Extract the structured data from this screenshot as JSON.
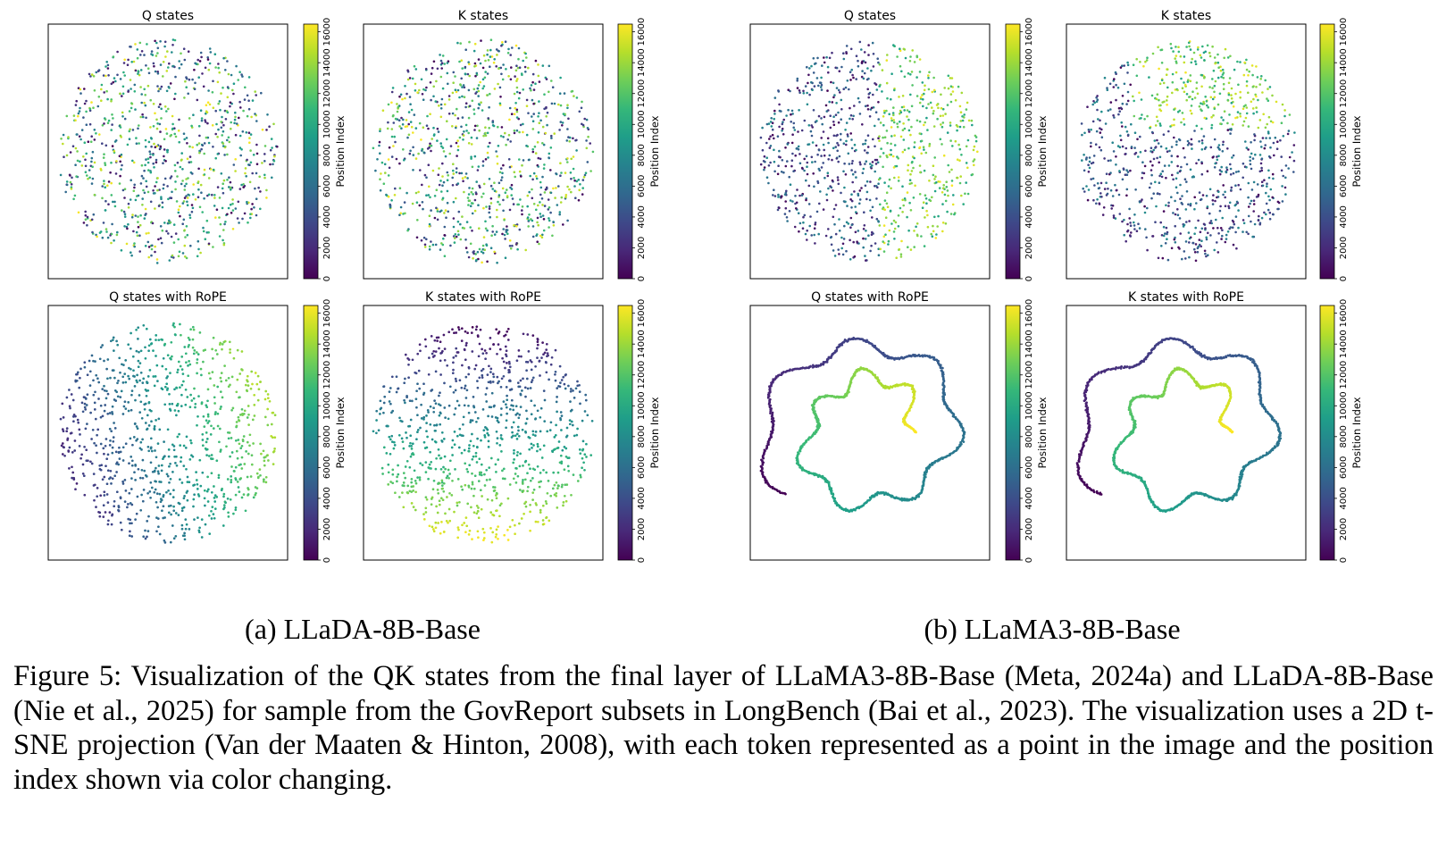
{
  "figure": {
    "subcaption_a": "(a) LLaDA-8B-Base",
    "subcaption_b": "(b) LLaMA3-8B-Base",
    "caption": "Figure 5: Visualization of the QK states from the final layer of LLaMA3-8B-Base (Meta, 2024a) and LLaDA-8B-Base (Nie et al., 2025) for sample from the GovReport subsets in LongBench (Bai et al., 2023). The visualization uses a 2D t-SNE projection (Van der Maaten & Hinton, 2008), with each token represented as a point in the image and the position index shown via color changing."
  },
  "colors": {
    "viridis": [
      "#440154",
      "#482878",
      "#3e4989",
      "#31688e",
      "#26828e",
      "#1f9e89",
      "#35b779",
      "#6ece58",
      "#b5de2b",
      "#fde725"
    ],
    "axes_border": "#000000"
  },
  "chart_data": [
    {
      "type": "scatter",
      "model": "LLaDA-8B-Base",
      "title": "Q states",
      "colorbar_label": "Position Index",
      "colorbar_ticks": [
        0,
        2000,
        4000,
        6000,
        8000,
        10000,
        12000,
        14000,
        16000
      ],
      "color_range": [
        0,
        16500
      ],
      "pattern": "mixed"
    },
    {
      "type": "scatter",
      "model": "LLaDA-8B-Base",
      "title": "K states",
      "colorbar_label": "Position Index",
      "colorbar_ticks": [
        0,
        2000,
        4000,
        6000,
        8000,
        10000,
        12000,
        14000,
        16000
      ],
      "color_range": [
        0,
        16500
      ],
      "pattern": "mixed"
    },
    {
      "type": "scatter",
      "model": "LLaMA3-8B-Base",
      "title": "Q states",
      "colorbar_label": "Position Index",
      "colorbar_ticks": [
        0,
        2000,
        4000,
        6000,
        8000,
        10000,
        12000,
        14000,
        16000
      ],
      "color_range": [
        0,
        16500
      ],
      "pattern": "split"
    },
    {
      "type": "scatter",
      "model": "LLaMA3-8B-Base",
      "title": "K states",
      "colorbar_label": "Position Index",
      "colorbar_ticks": [
        0,
        2000,
        4000,
        6000,
        8000,
        10000,
        12000,
        14000,
        16000
      ],
      "color_range": [
        0,
        16500
      ],
      "pattern": "split-top"
    },
    {
      "type": "scatter",
      "model": "LLaDA-8B-Base",
      "title": "Q states with RoPE",
      "colorbar_label": "Position Index",
      "colorbar_ticks": [
        0,
        2000,
        4000,
        6000,
        8000,
        10000,
        12000,
        14000,
        16000
      ],
      "color_range": [
        0,
        16500
      ],
      "pattern": "gradient"
    },
    {
      "type": "scatter",
      "model": "LLaDA-8B-Base",
      "title": "K states with RoPE",
      "colorbar_label": "Position Index",
      "colorbar_ticks": [
        0,
        2000,
        4000,
        6000,
        8000,
        10000,
        12000,
        14000,
        16000
      ],
      "color_range": [
        0,
        16500
      ],
      "pattern": "gradient-vertical"
    },
    {
      "type": "scatter",
      "model": "LLaMA3-8B-Base",
      "title": "Q states with RoPE",
      "colorbar_label": "Position Index",
      "colorbar_ticks": [
        0,
        2000,
        4000,
        6000,
        8000,
        10000,
        12000,
        14000,
        16000
      ],
      "color_range": [
        0,
        16500
      ],
      "pattern": "curves"
    },
    {
      "type": "scatter",
      "model": "LLaMA3-8B-Base",
      "title": "K states with RoPE",
      "colorbar_label": "Position Index",
      "colorbar_ticks": [
        0,
        2000,
        4000,
        6000,
        8000,
        10000,
        12000,
        14000,
        16000
      ],
      "color_range": [
        0,
        16500
      ],
      "pattern": "curves"
    }
  ]
}
